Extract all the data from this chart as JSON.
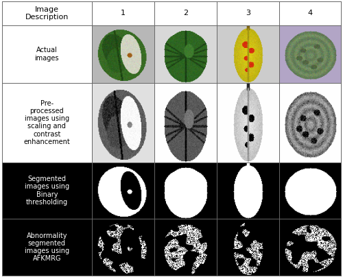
{
  "col_labels": [
    "Image\nDescription",
    "1",
    "2",
    "3",
    "4"
  ],
  "row_labels": [
    "Actual\nimages",
    "Pre-\nprocessed\nimages using\nscaling and\ncontrast\nenhancement",
    "Segmented\nimages using\nBinary\nthresholding",
    "Abnormality\nsegmented\nimages using\nAFKMRG"
  ],
  "row_label_bg": [
    "#ffffff",
    "#ffffff",
    "#000000",
    "#000000"
  ],
  "row_label_fg": [
    "#000000",
    "#000000",
    "#ffffff",
    "#ffffff"
  ],
  "font_size": 7,
  "header_font_size": 8,
  "row_heights": [
    0.78,
    1.9,
    2.6,
    1.86,
    1.86
  ],
  "col_widths": [
    1.45,
    1.0,
    1.0,
    1.0,
    1.0
  ]
}
